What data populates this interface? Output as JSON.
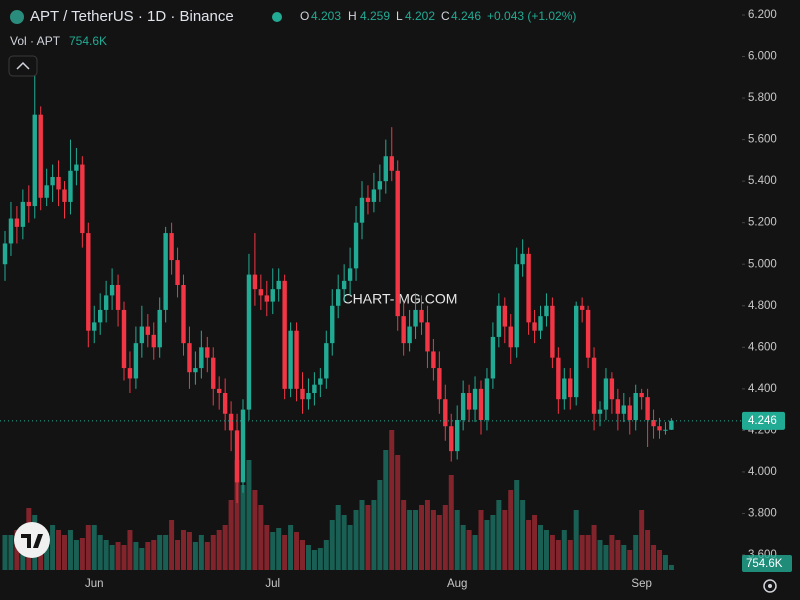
{
  "chart_data": {
    "type": "candlestick",
    "title": "APT / TetherUS · 1D · Binance",
    "watermark": "CHART-IMG.COM",
    "legend_labels": {
      "open": "O",
      "high": "H",
      "low": "L",
      "close": "C"
    },
    "change_label": "+0.043 (+1.02%)",
    "up_color": "#22ab94",
    "down_color": "#f23645",
    "categories": [
      null,
      null,
      null,
      null,
      null,
      null,
      null,
      null,
      null,
      null,
      null,
      null,
      null,
      null,
      null,
      "Jun",
      null,
      null,
      null,
      null,
      null,
      null,
      null,
      null,
      null,
      null,
      null,
      null,
      null,
      null,
      null,
      null,
      null,
      null,
      null,
      null,
      null,
      null,
      null,
      null,
      null,
      null,
      null,
      null,
      null,
      "Jul",
      null,
      null,
      null,
      null,
      null,
      null,
      null,
      null,
      null,
      null,
      null,
      null,
      null,
      null,
      null,
      null,
      null,
      null,
      null,
      null,
      null,
      null,
      null,
      null,
      null,
      null,
      null,
      null,
      null,
      null,
      "Aug",
      null,
      null,
      null,
      null,
      null,
      null,
      null,
      null,
      null,
      null,
      null,
      null,
      null,
      null,
      null,
      null,
      null,
      null,
      null,
      null,
      null,
      null,
      null,
      null,
      null,
      null,
      null,
      null,
      null,
      null,
      "Sep",
      null,
      null,
      null,
      null,
      null
    ],
    "open": [
      5.0,
      5.1,
      5.22,
      5.18,
      5.3,
      5.28,
      5.72,
      5.32,
      5.38,
      5.42,
      5.36,
      5.3,
      5.45,
      5.48,
      5.15,
      4.68,
      4.72,
      4.78,
      4.85,
      4.9,
      4.78,
      4.5,
      4.45,
      4.62,
      4.7,
      4.66,
      4.6,
      4.78,
      5.15,
      5.02,
      4.9,
      4.62,
      4.48,
      4.5,
      4.6,
      4.55,
      4.4,
      4.38,
      4.28,
      4.2,
      3.95,
      4.3,
      4.95,
      4.88,
      4.85,
      4.82,
      4.88,
      4.92,
      4.4,
      4.68,
      4.4,
      4.35,
      4.38,
      4.42,
      4.45,
      4.62,
      4.8,
      4.88,
      4.92,
      4.98,
      5.2,
      5.32,
      5.3,
      5.36,
      5.4,
      5.52,
      5.45,
      4.75,
      4.62,
      4.7,
      4.78,
      4.72,
      4.58,
      4.5,
      4.35,
      4.22,
      4.1,
      4.25,
      4.38,
      4.3,
      4.4,
      4.25,
      4.45,
      4.65,
      4.8,
      4.7,
      4.6,
      5.0,
      5.05,
      4.72,
      4.68,
      4.75,
      4.8,
      4.55,
      4.35,
      4.45,
      4.36,
      4.8,
      4.78,
      4.55,
      4.28,
      4.3,
      4.45,
      4.35,
      4.28,
      4.32,
      4.25,
      4.38,
      4.36,
      4.25,
      4.22,
      4.2,
      4.203
    ],
    "high": [
      5.16,
      5.3,
      5.28,
      5.36,
      5.38,
      5.92,
      5.76,
      5.46,
      5.48,
      5.5,
      5.4,
      5.6,
      5.56,
      5.52,
      5.2,
      4.8,
      4.86,
      4.92,
      4.98,
      4.95,
      4.82,
      4.58,
      4.7,
      4.8,
      4.76,
      4.72,
      4.84,
      5.18,
      5.2,
      5.08,
      4.95,
      4.7,
      4.58,
      4.68,
      4.65,
      4.6,
      4.46,
      4.45,
      4.34,
      4.28,
      4.35,
      5.05,
      5.15,
      4.95,
      4.92,
      4.98,
      4.98,
      4.95,
      4.72,
      4.72,
      4.48,
      4.45,
      4.48,
      4.5,
      4.68,
      4.88,
      4.95,
      5.0,
      5.08,
      5.28,
      5.4,
      5.38,
      5.44,
      5.48,
      5.6,
      5.66,
      5.5,
      4.82,
      4.78,
      4.86,
      4.85,
      4.8,
      4.64,
      4.58,
      4.42,
      4.28,
      4.32,
      4.44,
      4.42,
      4.46,
      4.44,
      4.5,
      4.72,
      4.86,
      4.84,
      4.76,
      5.08,
      5.12,
      5.08,
      4.78,
      4.8,
      4.86,
      4.84,
      4.6,
      4.5,
      4.5,
      4.82,
      4.84,
      4.8,
      4.6,
      4.34,
      4.5,
      4.48,
      4.4,
      4.38,
      4.36,
      4.42,
      4.4,
      4.4,
      4.3,
      4.26,
      4.24,
      4.259
    ],
    "low": [
      4.92,
      5.04,
      5.1,
      5.12,
      5.2,
      5.22,
      5.26,
      5.28,
      5.3,
      5.28,
      5.22,
      5.24,
      5.38,
      5.08,
      4.6,
      4.62,
      4.66,
      4.72,
      4.78,
      4.7,
      4.44,
      4.38,
      4.4,
      4.55,
      4.6,
      4.54,
      4.55,
      4.72,
      4.95,
      4.84,
      4.56,
      4.4,
      4.42,
      4.45,
      4.48,
      4.32,
      4.3,
      4.2,
      4.1,
      3.85,
      3.9,
      4.25,
      4.8,
      4.78,
      4.75,
      4.76,
      4.82,
      4.35,
      4.36,
      4.34,
      4.28,
      4.3,
      4.32,
      4.36,
      4.4,
      4.56,
      4.74,
      4.82,
      4.85,
      4.92,
      5.12,
      5.24,
      5.25,
      5.3,
      5.34,
      5.4,
      4.68,
      4.56,
      4.58,
      4.64,
      4.66,
      4.5,
      4.44,
      4.28,
      4.15,
      4.05,
      4.06,
      4.2,
      4.24,
      4.24,
      4.18,
      4.2,
      4.4,
      4.6,
      4.62,
      4.52,
      4.55,
      4.94,
      4.66,
      4.62,
      4.64,
      4.7,
      4.5,
      4.28,
      4.3,
      4.3,
      4.32,
      4.72,
      4.5,
      4.2,
      4.22,
      4.25,
      4.28,
      4.2,
      4.24,
      4.18,
      4.2,
      4.3,
      4.12,
      4.16,
      4.16,
      4.18,
      4.202
    ],
    "close": [
      5.1,
      5.22,
      5.18,
      5.3,
      5.28,
      5.72,
      5.32,
      5.38,
      5.42,
      5.36,
      5.3,
      5.45,
      5.48,
      5.15,
      4.68,
      4.72,
      4.78,
      4.85,
      4.9,
      4.78,
      4.5,
      4.45,
      4.62,
      4.7,
      4.66,
      4.6,
      4.78,
      5.15,
      5.02,
      4.9,
      4.62,
      4.48,
      4.5,
      4.6,
      4.55,
      4.4,
      4.38,
      4.28,
      4.2,
      3.95,
      4.3,
      4.95,
      4.88,
      4.85,
      4.82,
      4.88,
      4.92,
      4.4,
      4.68,
      4.4,
      4.35,
      4.38,
      4.42,
      4.45,
      4.62,
      4.8,
      4.88,
      4.92,
      4.98,
      5.2,
      5.32,
      5.3,
      5.36,
      5.4,
      5.52,
      5.45,
      4.75,
      4.62,
      4.7,
      4.78,
      4.72,
      4.58,
      4.5,
      4.35,
      4.22,
      4.1,
      4.25,
      4.38,
      4.3,
      4.4,
      4.25,
      4.45,
      4.65,
      4.8,
      4.7,
      4.6,
      5.0,
      5.05,
      4.72,
      4.68,
      4.75,
      4.8,
      4.55,
      4.35,
      4.45,
      4.36,
      4.8,
      4.78,
      4.55,
      4.28,
      4.3,
      4.45,
      4.35,
      4.28,
      4.32,
      4.25,
      4.38,
      4.36,
      4.25,
      4.22,
      4.2,
      4.203,
      4.246
    ],
    "volume": {
      "name": "Vol · APT",
      "last_label": "754.6K",
      "values": [
        5250000,
        5250000,
        6000000,
        4500000,
        9300000,
        8250000,
        5250000,
        4500000,
        6750000,
        6000000,
        5250000,
        6000000,
        4500000,
        4800000,
        6750000,
        6750000,
        5250000,
        4500000,
        3750000,
        4200000,
        3750000,
        6000000,
        4200000,
        3300000,
        4200000,
        4500000,
        5250000,
        5250000,
        7500000,
        4500000,
        6000000,
        5700000,
        4200000,
        5250000,
        4200000,
        5250000,
        6000000,
        6750000,
        10500000,
        16500000,
        12750000,
        16500000,
        12000000,
        9750000,
        6750000,
        5700000,
        6300000,
        5250000,
        6750000,
        5700000,
        4500000,
        3750000,
        3000000,
        3300000,
        4500000,
        7500000,
        9750000,
        8250000,
        6750000,
        9000000,
        10500000,
        9750000,
        10500000,
        13500000,
        18000000,
        21000000,
        17250000,
        10500000,
        9000000,
        9000000,
        9750000,
        10500000,
        9000000,
        8250000,
        9750000,
        14250000,
        9000000,
        6750000,
        6000000,
        5250000,
        9000000,
        7500000,
        8250000,
        10500000,
        9000000,
        12000000,
        13500000,
        10500000,
        7500000,
        8250000,
        6750000,
        6000000,
        5250000,
        4500000,
        6000000,
        4500000,
        9000000,
        5250000,
        5250000,
        6750000,
        4500000,
        3750000,
        5250000,
        4500000,
        3750000,
        3000000,
        5250000,
        9000000,
        6000000,
        3750000,
        3000000,
        2250000,
        754600
      ]
    },
    "ylim": [
      3.6,
      6.2
    ],
    "yticks": [
      {
        "value": 3.6,
        "label": "3.600"
      },
      {
        "value": 3.8,
        "label": "3.800"
      },
      {
        "value": 4.0,
        "label": "4.000"
      },
      {
        "value": 4.2,
        "label": "4.200"
      },
      {
        "value": 4.4,
        "label": "4.400"
      },
      {
        "value": 4.6,
        "label": "4.600"
      },
      {
        "value": 4.8,
        "label": "4.800"
      },
      {
        "value": 5.0,
        "label": "5.000"
      },
      {
        "value": 5.2,
        "label": "5.200"
      },
      {
        "value": 5.4,
        "label": "5.400"
      },
      {
        "value": 5.6,
        "label": "5.600"
      },
      {
        "value": 5.8,
        "label": "5.800"
      },
      {
        "value": 6.0,
        "label": "6.000"
      },
      {
        "value": 6.2,
        "label": "6.200"
      }
    ],
    "grid": false
  }
}
